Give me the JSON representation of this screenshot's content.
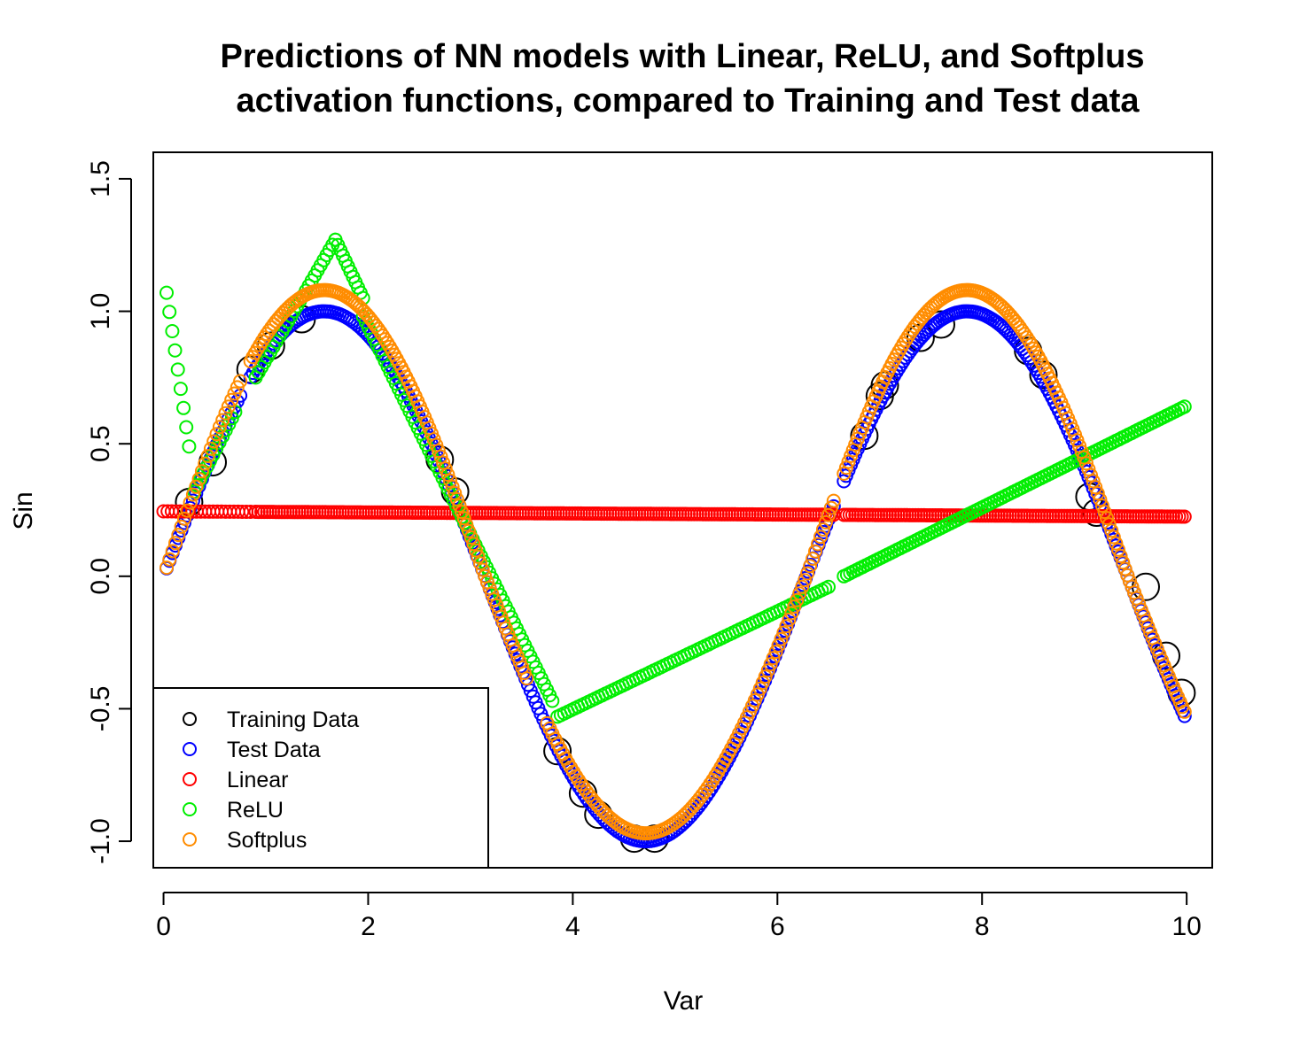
{
  "chart_data": {
    "type": "scatter",
    "title_lines": [
      "Predictions of NN models with Linear, ReLU, and Softplus",
      "activation functions, compared to Training and Test data"
    ],
    "xlabel": "Var",
    "ylabel": "Sin",
    "xlim": [
      -0.1,
      10.25
    ],
    "ylim": [
      -1.1,
      1.6
    ],
    "x_ticks": [
      0,
      2,
      4,
      6,
      8,
      10
    ],
    "x_tick_labels": [
      "0",
      "2",
      "4",
      "6",
      "8",
      "10"
    ],
    "y_ticks": [
      -1.0,
      -0.5,
      0.0,
      0.5,
      1.0,
      1.5
    ],
    "y_tick_labels": [
      "-1.0",
      "-0.5",
      "0.0",
      "0.5",
      "1.0",
      "1.5"
    ],
    "grid": false,
    "legend_position": "bottom-left",
    "series": [
      {
        "name": "Training Data",
        "color": "#000000",
        "marker": "open-circle-large",
        "x": [
          0.25,
          0.48,
          0.85,
          1.05,
          1.35,
          2.7,
          2.85,
          3.85,
          4.1,
          4.25,
          4.6,
          4.8,
          6.85,
          7.0,
          7.05,
          7.4,
          7.6,
          8.45,
          8.6,
          9.05,
          9.12,
          9.6,
          9.8,
          9.95
        ],
        "y": [
          0.28,
          0.43,
          0.78,
          0.87,
          0.97,
          0.44,
          0.32,
          -0.66,
          -0.82,
          -0.9,
          -0.99,
          -0.99,
          0.53,
          0.68,
          0.72,
          0.9,
          0.95,
          0.85,
          0.76,
          0.3,
          0.24,
          -0.04,
          -0.3,
          -0.44
        ]
      },
      {
        "name": "Test Data",
        "color": "#0000ff",
        "marker": "open-circle",
        "func": "sin",
        "segments": [
          [
            0.03,
            0.75,
            26
          ],
          [
            0.85,
            6.55,
            230
          ],
          [
            6.65,
            9.98,
            150
          ]
        ]
      },
      {
        "name": "Linear",
        "color": "#ff0000",
        "marker": "open-circle",
        "x": [
          0,
          10
        ],
        "y": [
          0.245,
          0.225
        ],
        "segments": [
          [
            0.0,
            0.85,
            22
          ],
          [
            0.9,
            6.55,
            200
          ],
          [
            6.65,
            9.98,
            120
          ]
        ]
      },
      {
        "name": "ReLU",
        "color": "#00ee00",
        "marker": "open-circle",
        "pieces": [
          {
            "x": [
              0.03,
              0.25
            ],
            "y": [
              1.07,
              0.49
            ],
            "n": 9
          },
          {
            "x": [
              0.3,
              0.7
            ],
            "y": [
              0.32,
              0.62
            ],
            "n": 14
          },
          {
            "x": [
              0.9,
              1.68
            ],
            "y": [
              0.75,
              1.27
            ],
            "n": 28
          },
          {
            "x": [
              1.68,
              1.95
            ],
            "y": [
              1.27,
              1.05
            ],
            "n": 12
          },
          {
            "x": [
              1.95,
              3.8
            ],
            "y": [
              0.98,
              -0.47
            ],
            "n": 70
          },
          {
            "x": [
              3.85,
              6.5
            ],
            "y": [
              -0.53,
              -0.04
            ],
            "n": 80
          },
          {
            "x": [
              6.65,
              9.98
            ],
            "y": [
              0.0,
              0.64
            ],
            "n": 110
          }
        ]
      },
      {
        "name": "Softplus",
        "color": "#ff8c00",
        "marker": "open-circle",
        "func": "softplus",
        "peak": 1.08,
        "trough": -0.97,
        "segments": [
          [
            0.03,
            0.75,
            26
          ],
          [
            0.85,
            3.55,
            120
          ],
          [
            3.75,
            6.55,
            110
          ],
          [
            6.65,
            9.98,
            150
          ]
        ]
      }
    ],
    "legend": [
      {
        "label": "Training Data",
        "color": "#000000"
      },
      {
        "label": "Test Data",
        "color": "#0000ff"
      },
      {
        "label": "Linear",
        "color": "#ff0000"
      },
      {
        "label": "ReLU",
        "color": "#00ee00"
      },
      {
        "label": "Softplus",
        "color": "#ff8c00"
      }
    ]
  }
}
